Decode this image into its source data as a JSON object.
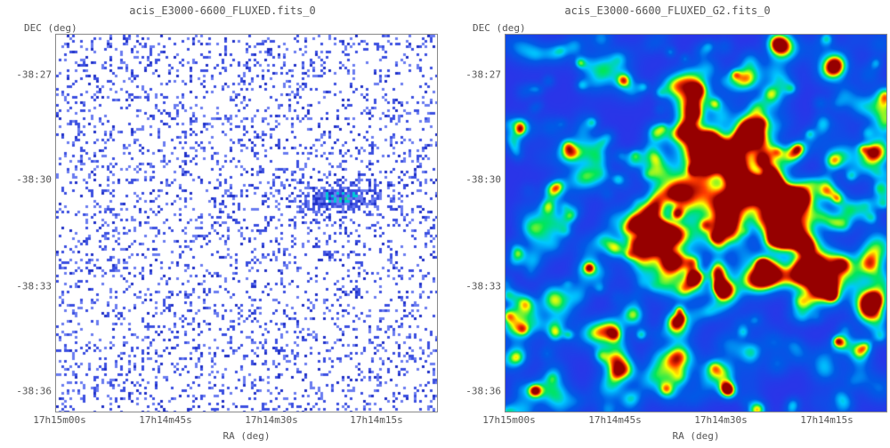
{
  "panels": [
    {
      "title": "acis_E3000-6600_FLUXED.fits_0",
      "ylabel": "DEC (deg)",
      "xlabel": "RA (deg)",
      "yticks": [
        "-38:27",
        "-38:30",
        "-38:33",
        "-38:36"
      ],
      "xticks": [
        "17h15m00s",
        "17h14m45s",
        "17h14m30s",
        "17h14m15s"
      ],
      "image": "raw-photon-counts",
      "colormap": [
        "#ffffff",
        "#2a35e8",
        "#00c8ff",
        "#00ff00",
        "#ffff00",
        "#ff0000"
      ]
    },
    {
      "title": "acis_E3000-6600_FLUXED_G2.fits_0",
      "ylabel": "DEC (deg)",
      "xlabel": "RA (deg)",
      "yticks": [
        "-38:27",
        "-38:30",
        "-38:33",
        "-38:36"
      ],
      "xticks": [
        "17h15m00s",
        "17h14m45s",
        "17h14m30s",
        "17h14m15s"
      ],
      "image": "gaussian-smoothed",
      "colormap": [
        "#ffffff",
        "#2a35e8",
        "#00c8ff",
        "#00ff00",
        "#ffff00",
        "#ff0000"
      ]
    }
  ]
}
